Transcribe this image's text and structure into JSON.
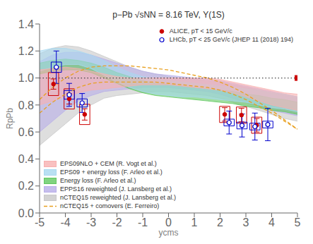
{
  "chart_data": {
    "type": "scatter",
    "title": "p−Pb √sNN = 8.16 TeV, Υ(1S)",
    "xlabel": "ycms",
    "ylabel": "RpPb",
    "xlim": [
      -5,
      5
    ],
    "ylim": [
      0,
      1.4
    ],
    "xticks": [
      -5,
      -4,
      -3,
      -2,
      -1,
      0,
      1,
      2,
      3,
      4,
      5
    ],
    "yticks": [
      {
        "value": 0,
        "label": "0.0"
      },
      0.2,
      0.4,
      0.6,
      0.8,
      {
        "value": 1.0,
        "label": "1.0"
      },
      1.2,
      1.4
    ],
    "grid": false,
    "reference_lines": [
      {
        "y": 1.0,
        "line_style": "dotted",
        "color": "#444444"
      }
    ],
    "series": [
      {
        "name": "EPS09NLO + CEM (R. Vogt et al.)",
        "type": "band",
        "color": "#f8b0b0",
        "legend": "lower left",
        "x": [
          -5.0,
          -4.5,
          -4.0,
          -3.5,
          -3.0,
          -2.5,
          -2.0,
          -1.5,
          -1.0,
          -0.5,
          0.0,
          0.5,
          1.0,
          1.5,
          2.0,
          2.5,
          3.0,
          3.5,
          4.0,
          4.5,
          5.0
        ],
        "y_lo": [
          0.8,
          0.83,
          0.86,
          0.89,
          0.91,
          0.92,
          0.93,
          0.94,
          0.95,
          0.95,
          0.95,
          0.94,
          0.93,
          0.92,
          0.91,
          0.89,
          0.86,
          0.83,
          0.8,
          0.78,
          0.76
        ],
        "y_hi": [
          1.06,
          1.07,
          1.08,
          1.07,
          1.05,
          1.03,
          1.01,
          1.0,
          1.0,
          1.0,
          1.0,
          1.0,
          1.0,
          1.0,
          0.99,
          0.97,
          0.95,
          0.93,
          0.91,
          0.89,
          0.88
        ]
      },
      {
        "name": "EPS09 + energy loss (F. Arleo et al.)",
        "type": "band",
        "color": "#a8d8f0",
        "legend": "lower left",
        "x": [
          -5.0,
          -4.5,
          -4.0,
          -3.5,
          -3.0,
          -2.5,
          -2.0,
          -1.5,
          -1.0,
          -0.5,
          0.0,
          0.5,
          1.0,
          1.5,
          2.0,
          2.5,
          3.0,
          3.5,
          4.0,
          4.5,
          5.0
        ],
        "y_lo": [
          1.05,
          1.08,
          1.1,
          1.1,
          1.07,
          1.02,
          0.97,
          0.93,
          0.9,
          0.88,
          0.87,
          0.86,
          0.86,
          0.85,
          0.84,
          0.83,
          0.82,
          0.8,
          0.78,
          0.77,
          0.75
        ],
        "y_hi": [
          1.2,
          1.22,
          1.22,
          1.2,
          1.17,
          1.13,
          1.08,
          1.04,
          1.01,
          0.99,
          0.98,
          0.97,
          0.96,
          0.95,
          0.94,
          0.93,
          0.92,
          0.91,
          0.89,
          0.88,
          0.86
        ]
      },
      {
        "name": "Energy loss (F. Arleo et al.)",
        "type": "band",
        "color": "#60c860",
        "legend": "lower left",
        "x": [
          -5.0,
          -4.5,
          -4.0,
          -3.5,
          -3.0,
          -2.5,
          -2.0,
          -1.5,
          -1.0,
          -0.5,
          0.0,
          0.5,
          1.0,
          1.5,
          2.0,
          2.5,
          3.0,
          3.5,
          4.0,
          4.5,
          5.0
        ],
        "y_lo": [
          1.03,
          1.05,
          1.06,
          1.06,
          1.04,
          1.0,
          0.96,
          0.92,
          0.89,
          0.87,
          0.86,
          0.85,
          0.84,
          0.83,
          0.82,
          0.81,
          0.79,
          0.78,
          0.76,
          0.75,
          0.73
        ],
        "y_hi": [
          1.11,
          1.13,
          1.14,
          1.13,
          1.11,
          1.08,
          1.04,
          1.01,
          0.98,
          0.96,
          0.95,
          0.94,
          0.93,
          0.92,
          0.91,
          0.9,
          0.88,
          0.87,
          0.85,
          0.84,
          0.82
        ]
      },
      {
        "name": "EPPS16 reweighted (J. Lansberg et al.)",
        "type": "band",
        "color": "#b8aee8",
        "legend": "lower left",
        "x": [
          -5.0,
          -4.5,
          -4.0,
          -3.5,
          -3.0,
          -2.5,
          -2.0,
          -1.5,
          -1.0,
          -0.5,
          0.0,
          0.5,
          1.0,
          1.5,
          2.0,
          2.5,
          3.0,
          3.5,
          4.0,
          4.5,
          5.0
        ],
        "y_lo": [
          0.6,
          0.68,
          0.76,
          0.83,
          0.87,
          0.9,
          0.91,
          0.92,
          0.93,
          0.93,
          0.93,
          0.92,
          0.91,
          0.9,
          0.88,
          0.85,
          0.82,
          0.79,
          0.76,
          0.74,
          0.72
        ],
        "y_hi": [
          1.12,
          1.17,
          1.19,
          1.19,
          1.17,
          1.14,
          1.11,
          1.08,
          1.05,
          1.03,
          1.02,
          1.01,
          1.0,
          0.99,
          0.98,
          0.96,
          0.94,
          0.92,
          0.9,
          0.88,
          0.86
        ]
      },
      {
        "name": "nCTEQ15 reweighted (J. Lansberg et al.)",
        "type": "band",
        "color": "#c8c8c8",
        "legend": "lower left",
        "x": [
          -5.0,
          -4.5,
          -4.0,
          -3.5,
          -3.0,
          -2.5,
          -2.0,
          -1.5,
          -1.0,
          -0.5,
          0.0,
          0.5,
          1.0,
          1.5,
          2.0,
          2.5,
          3.0,
          3.5,
          4.0,
          4.5,
          5.0
        ],
        "y_lo": [
          0.5,
          0.58,
          0.66,
          0.74,
          0.8,
          0.85,
          0.87,
          0.88,
          0.89,
          0.9,
          0.9,
          0.89,
          0.88,
          0.87,
          0.85,
          0.82,
          0.79,
          0.76,
          0.73,
          0.7,
          0.68
        ],
        "y_hi": [
          1.18,
          1.22,
          1.24,
          1.23,
          1.2,
          1.16,
          1.12,
          1.08,
          1.05,
          1.03,
          1.01,
          1.0,
          0.99,
          0.98,
          0.97,
          0.95,
          0.93,
          0.91,
          0.89,
          0.87,
          0.85
        ]
      },
      {
        "name": "nCTEQ15 + comovers (E. Ferreiro)",
        "type": "band",
        "line_style": "dashed",
        "color": "#e8a020",
        "legend": "lower left",
        "x": [
          -5.0,
          -4.5,
          -4.0,
          -3.5,
          -3.0,
          -2.5,
          -2.0,
          -1.5,
          -1.0,
          -0.5,
          0.0,
          0.5,
          1.0,
          1.5,
          2.0,
          2.5,
          3.0,
          3.5,
          4.0,
          4.5,
          5.0
        ],
        "y_lo": [
          0.74,
          0.82,
          0.88,
          0.93,
          0.96,
          0.97,
          0.97,
          0.97,
          0.97,
          0.97,
          0.96,
          0.95,
          0.94,
          0.93,
          0.91,
          0.88,
          0.84,
          0.79,
          0.74,
          0.68,
          0.62
        ],
        "y_hi": [
          0.84,
          0.93,
          1.0,
          1.05,
          1.08,
          1.09,
          1.09,
          1.09,
          1.08,
          1.07,
          1.06,
          1.04,
          1.02,
          1.0,
          0.97,
          0.93,
          0.88,
          0.82,
          0.76,
          0.69,
          0.62
        ]
      },
      {
        "name": "ALICE, pT < 15 GeV/c",
        "type": "scatter",
        "marker": "circle",
        "color": "#cc0000",
        "legend": "upper right",
        "x": [
          -4.46,
          -3.85,
          -3.25,
          2.18,
          2.83,
          3.42
        ],
        "y": [
          0.955,
          0.845,
          0.73,
          0.73,
          0.725,
          0.65
        ],
        "stat": [
          0.038,
          0.038,
          0.042,
          0.05,
          0.05,
          0.05
        ],
        "syst": [
          0.085,
          0.075,
          0.075,
          0.06,
          0.06,
          0.06
        ]
      },
      {
        "type": "scatter",
        "marker": "square",
        "color": "#cc0000",
        "x": [
          5.0
        ],
        "y": [
          1.0
        ]
      },
      {
        "name": "LHCb, pT < 25 GeV/c (JHEP 11 (2018) 194)",
        "type": "scatter",
        "marker": "open circle",
        "color": "#0000cc",
        "legend": "upper right",
        "x": [
          -4.35,
          -3.85,
          -3.35,
          2.35,
          2.85,
          3.35,
          3.85
        ],
        "y": [
          1.08,
          0.875,
          0.815,
          0.67,
          0.648,
          0.64,
          0.655
        ],
        "stat": [
          0.12,
          0.085,
          0.07,
          0.085,
          0.085,
          0.1,
          0.12
        ],
        "syst": [
          0.038,
          0.032,
          0.03,
          0.025,
          0.025,
          0.025,
          0.025
        ]
      }
    ]
  }
}
